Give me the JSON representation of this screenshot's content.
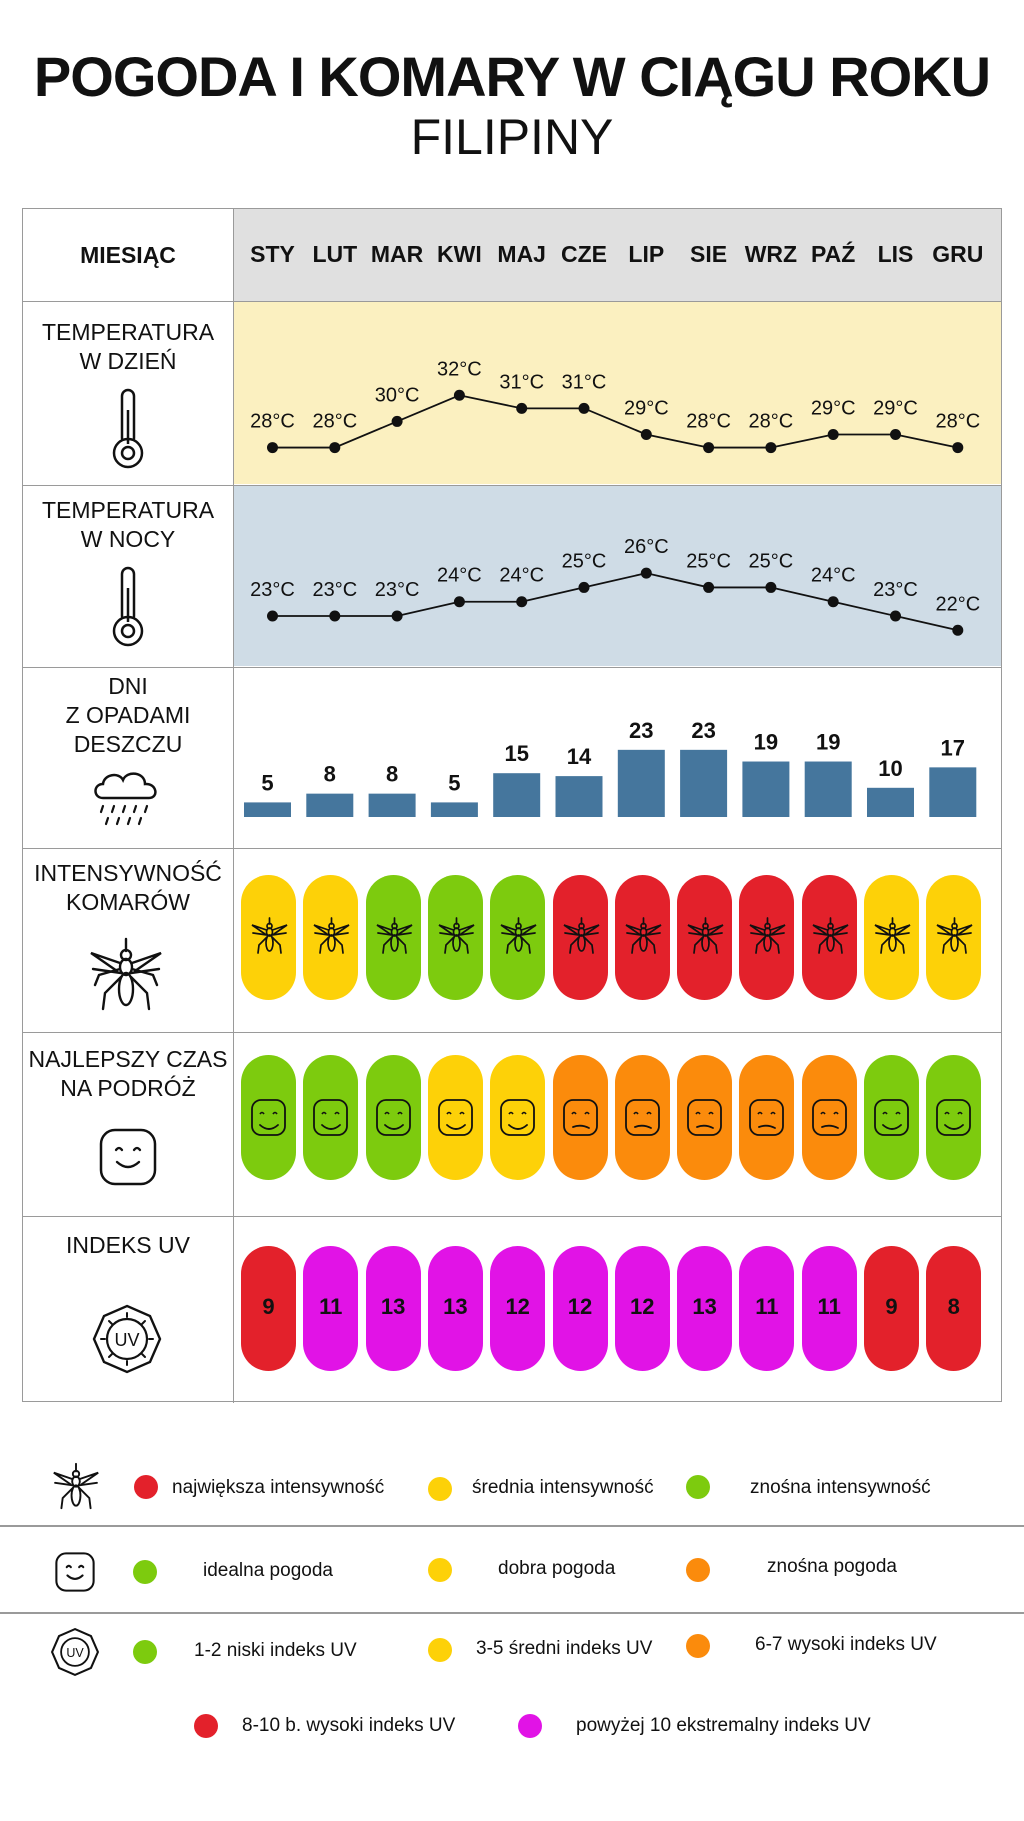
{
  "header": {
    "title": "POGODA I KOMARY W CIĄGU ROKU",
    "subtitle": "FILIPINY"
  },
  "labels": {
    "month": "MIESIĄC",
    "day_temp": [
      "TEMPERATURA",
      "W DZIEŃ"
    ],
    "night_temp": [
      "TEMPERATURA",
      "W NOCY"
    ],
    "rain": [
      "DNI",
      "Z OPADAMI",
      "DESZCZU"
    ],
    "mosquito": [
      "INTENSYWNOŚĆ",
      "KOMARÓW"
    ],
    "travel": [
      "NAJLEPSZY CZAS",
      "NA PODRÓŻ"
    ],
    "uv": [
      "INDEKS UV"
    ]
  },
  "icons": {
    "thermometer": "thermometer-icon",
    "rain": "rain-cloud-icon",
    "mosquito": "mosquito-icon",
    "smiley": "smiley-icon",
    "uv": "uv-badge-icon"
  },
  "chart_data": {
    "type": "table",
    "months": [
      "STY",
      "LUT",
      "MAR",
      "KWI",
      "MAJ",
      "CZE",
      "LIP",
      "SIE",
      "WRZ",
      "PAŹ",
      "LIS",
      "GRU"
    ],
    "day_temperature": {
      "type": "line",
      "values": [
        28,
        28,
        30,
        32,
        31,
        31,
        29,
        28,
        28,
        29,
        29,
        28
      ],
      "labels": [
        "28°C",
        "28°C",
        "30°C",
        "32°C",
        "31°C",
        "31°C",
        "29°C",
        "28°C",
        "28°C",
        "29°C",
        "29°C",
        "28°C"
      ],
      "ylim": [
        22,
        36
      ]
    },
    "night_temperature": {
      "type": "line",
      "values": [
        23,
        23,
        23,
        24,
        24,
        25,
        26,
        25,
        25,
        24,
        23,
        22
      ],
      "labels": [
        "23°C",
        "23°C",
        "23°C",
        "24°C",
        "24°C",
        "25°C",
        "26°C",
        "25°C",
        "25°C",
        "24°C",
        "23°C",
        "22°C"
      ],
      "ylim": [
        16,
        30
      ]
    },
    "rain_days": {
      "type": "bar",
      "values": [
        5,
        8,
        8,
        5,
        15,
        14,
        23,
        23,
        19,
        19,
        10,
        17
      ],
      "labels": [
        "5",
        "8",
        "8",
        "5",
        "15",
        "14",
        "23",
        "23",
        "19",
        "19",
        "10",
        "17"
      ],
      "ylim": [
        0,
        25
      ]
    },
    "mosquito_intensity": {
      "levels": [
        "medium",
        "medium",
        "low",
        "low",
        "low",
        "high",
        "high",
        "high",
        "high",
        "high",
        "medium",
        "medium"
      ]
    },
    "best_travel_time": {
      "levels": [
        "ideal",
        "ideal",
        "ideal",
        "good",
        "good",
        "tolerable",
        "tolerable",
        "tolerable",
        "tolerable",
        "tolerable",
        "ideal",
        "ideal"
      ]
    },
    "uv_index": {
      "values": [
        9,
        11,
        13,
        13,
        12,
        12,
        12,
        13,
        11,
        11,
        9,
        8
      ],
      "labels": [
        "9",
        "11",
        "13",
        "13",
        "12",
        "12",
        "12",
        "13",
        "11",
        "11",
        "9",
        "8"
      ]
    }
  },
  "colors": {
    "day_bg": "#fbf0c0",
    "night_bg": "#cfdce6",
    "header_bg": "#e0e0e0",
    "bar": "#45769d",
    "red": "#e3212b",
    "yellow": "#fdd108",
    "green": "#7dcb0e",
    "orange": "#fb8b0c",
    "magenta": "#e113e6",
    "mosquito": {
      "high": "#e3212b",
      "medium": "#fdd108",
      "low": "#7dcb0e"
    },
    "travel": {
      "ideal": "#7dcb0e",
      "good": "#fdd108",
      "tolerable": "#fb8b0c"
    }
  },
  "legend": {
    "mosquito": [
      "największa intensywność",
      "średnia intensywność",
      "znośna intensywność"
    ],
    "travel": [
      "idealna pogoda",
      "dobra pogoda",
      "znośna pogoda"
    ],
    "uv_row1": [
      "1-2 niski indeks UV",
      "3-5 średni indeks UV",
      "6-7 wysoki indeks UV"
    ],
    "uv_row2": [
      "8-10 b. wysoki indeks UV",
      "powyżej 10 ekstremalny indeks UV"
    ]
  }
}
